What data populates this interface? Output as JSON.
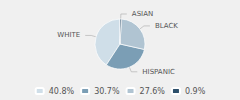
{
  "chart_data": {
    "type": "pie",
    "categories": [
      "WHITE",
      "HISPANIC",
      "BLACK",
      "ASIAN"
    ],
    "values": [
      40.8,
      30.7,
      27.6,
      0.9
    ],
    "value_labels": [
      "40.8%",
      "30.7%",
      "27.6%",
      "0.9%"
    ],
    "colors": [
      "#cfdee8",
      "#7b9eb5",
      "#b0c4d2",
      "#2d4f6a"
    ],
    "legend": "bottom"
  }
}
